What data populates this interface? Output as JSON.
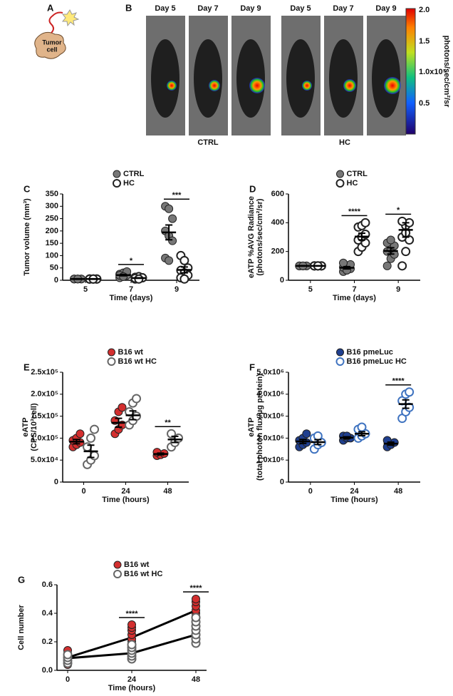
{
  "panel_a": {
    "label": "A",
    "cell": [
      "Tumor",
      "cell"
    ]
  },
  "panel_b": {
    "label": "B",
    "days": [
      "Day 5",
      "Day 7",
      "Day 9",
      "Day 5",
      "Day 7",
      "Day 9"
    ],
    "groups": [
      "CTRL",
      "HC"
    ],
    "colorbar_ticks": [
      "2.0",
      "1.5",
      "1.0x10⁵",
      "0.5"
    ],
    "colorbar_label": "photons/sec/cm²/sr"
  },
  "chart_data": [
    {
      "type": "dotplot",
      "panel": "C",
      "ylabel": [
        "Tumor volume (mm³)"
      ],
      "xlabel": "Time (days)",
      "categories": [
        "5",
        "7",
        "9"
      ],
      "ylim": [
        0,
        350
      ],
      "yticks": [
        0,
        50,
        100,
        150,
        200,
        250,
        300,
        350
      ],
      "series": [
        {
          "name": "CTRL",
          "color": "#777777",
          "filled": true,
          "values": [
            [
              5,
              5,
              5,
              5,
              5,
              5,
              5,
              5
            ],
            [
              10,
              15,
              20,
              25,
              30,
              35,
              20,
              15
            ],
            [
              300,
              290,
              250,
              200,
              180,
              160,
              90,
              80
            ]
          ],
          "mean": [
            5,
            21,
            194
          ],
          "sem": [
            1,
            3,
            30
          ]
        },
        {
          "name": "HC",
          "color": "#222222",
          "filled": false,
          "values": [
            [
              5,
              5,
              5,
              5,
              5,
              5,
              5,
              5
            ],
            [
              5,
              8,
              10,
              12,
              15,
              10,
              8,
              5
            ],
            [
              100,
              80,
              50,
              40,
              30,
              20,
              10,
              5
            ]
          ],
          "mean": [
            5,
            9,
            42
          ],
          "sem": [
            1,
            1,
            12
          ]
        }
      ],
      "annotations": [
        {
          "x": "7",
          "text": "*"
        },
        {
          "x": "9",
          "text": "***"
        }
      ]
    },
    {
      "type": "dotplot",
      "panel": "D",
      "ylabel": [
        "eATP %AVG Radiance",
        "(photons/sec/cm²/sr)"
      ],
      "xlabel": "Time  (days)",
      "categories": [
        "5",
        "7",
        "9"
      ],
      "ylim": [
        0,
        600
      ],
      "yticks": [
        0,
        200,
        400,
        600
      ],
      "series": [
        {
          "name": "CTRL",
          "color": "#777777",
          "filled": true,
          "values": [
            [
              100,
              100,
              100,
              100,
              100,
              100,
              100,
              100
            ],
            [
              60,
              70,
              80,
              90,
              100,
              110,
              120,
              70
            ],
            [
              100,
              150,
              180,
              200,
              220,
              240,
              260,
              280
            ]
          ],
          "mean": [
            100,
            87,
            204
          ],
          "sem": [
            1,
            8,
            22
          ]
        },
        {
          "name": "HC",
          "color": "#222222",
          "filled": false,
          "values": [
            [
              100,
              100,
              100,
              100,
              100,
              100,
              100,
              100
            ],
            [
              200,
              230,
              260,
              280,
              300,
              320,
              370,
              380,
              400
            ],
            [
              100,
              200,
              280,
              300,
              380,
              400,
              410,
              330
            ]
          ],
          "mean": [
            100,
            304,
            350
          ],
          "sem": [
            1,
            23,
            50
          ]
        }
      ],
      "annotations": [
        {
          "x": "7",
          "text": "****"
        },
        {
          "x": "9",
          "text": "*"
        }
      ]
    },
    {
      "type": "dotplot",
      "panel": "E",
      "ylabel": [
        "eATP",
        "(CPS/10³cell)"
      ],
      "xlabel": "Time (hours)",
      "categories": [
        "0",
        "24",
        "48"
      ],
      "ylim": [
        0,
        250000
      ],
      "yticks": [
        0,
        {
          "value": 50000,
          "label": "5.0x10⁴"
        },
        {
          "value": 100000,
          "label": "1.0x10⁵"
        },
        {
          "value": 150000,
          "label": "1.5x10⁵"
        },
        {
          "value": 200000,
          "label": "2.0x10⁵"
        },
        {
          "value": 250000,
          "label": "2.5x10⁵"
        }
      ],
      "series": [
        {
          "name": "B16 wt",
          "color": "#d32f2f",
          "filled": true,
          "values": [
            [
              80000,
              85000,
              90000,
              95000,
              100000,
              110000
            ],
            [
              110000,
              120000,
              130000,
              140000,
              160000,
              170000
            ],
            [
              60000,
              62000,
              65000,
              68000
            ]
          ],
          "mean": [
            92000,
            135000,
            64000
          ],
          "sem": [
            5000,
            10000,
            2000
          ]
        },
        {
          "name": "B16 wt HC",
          "color": "#666666",
          "filled": false,
          "values": [
            [
              40000,
              50000,
              60000,
              80000,
              100000,
              120000
            ],
            [
              130000,
              140000,
              150000,
              160000,
              180000,
              190000
            ],
            [
              80000,
              90000,
              100000,
              110000
            ]
          ],
          "mean": [
            70000,
            152000,
            97000
          ],
          "sem": [
            14000,
            10000,
            7000
          ]
        }
      ],
      "annotations": [
        {
          "x": "48",
          "text": "**"
        }
      ]
    },
    {
      "type": "dotplot",
      "panel": "F",
      "ylabel": [
        "eATP",
        "(total photon flux/µg protein)"
      ],
      "xlabel": "Time (hours)",
      "categories": [
        "0",
        "24",
        "48"
      ],
      "ylim": [
        0,
        5000000
      ],
      "yticks": [
        0,
        {
          "value": 1000000,
          "label": "1.0x10⁶"
        },
        {
          "value": 2000000,
          "label": "2.0x10⁶"
        },
        {
          "value": 3000000,
          "label": "3.0x10⁶"
        },
        {
          "value": 4000000,
          "label": "4.0x10⁶"
        },
        {
          "value": 5000000,
          "label": "5.0x10⁶"
        }
      ],
      "series": [
        {
          "name": "B16 pmeLuc",
          "color": "#1f3f8f",
          "filled": true,
          "values": [
            [
              1600000,
              1700000,
              1800000,
              1900000,
              2000000,
              2200000
            ],
            [
              1900000,
              2000000,
              2000000,
              2100000,
              2100000
            ],
            [
              1600000,
              1700000,
              1800000,
              1900000
            ]
          ],
          "mean": [
            1850000,
            2020000,
            1750000
          ],
          "sem": [
            90000,
            40000,
            70000
          ]
        },
        {
          "name": "B16 pmeLuc HC",
          "color": "#3f73c0",
          "filled": false,
          "values": [
            [
              1500000,
              1700000,
              1800000,
              2000000,
              2100000
            ],
            [
              2000000,
              2100000,
              2200000,
              2400000,
              2500000
            ],
            [
              2900000,
              3200000,
              3400000,
              3700000,
              4000000,
              4100000
            ]
          ],
          "mean": [
            1820000,
            2200000,
            3550000
          ],
          "sem": [
            110000,
            90000,
            190000
          ]
        }
      ],
      "annotations": [
        {
          "x": "48",
          "text": "****"
        }
      ]
    },
    {
      "type": "dotline",
      "panel": "G",
      "ylabel": [
        "Cell number"
      ],
      "xlabel": "Time (hours)",
      "x": [
        0,
        24,
        48
      ],
      "xlim": [
        0,
        48
      ],
      "xticks": [
        0,
        24,
        48
      ],
      "ylim": [
        0,
        0.6
      ],
      "yticks": [
        {
          "value": 0,
          "label": "0.0"
        },
        {
          "value": 0.2,
          "label": "0.2"
        },
        {
          "value": 0.4,
          "label": "0.4"
        },
        {
          "value": 0.6,
          "label": "0.6"
        }
      ],
      "series": [
        {
          "name": "B16 wt",
          "color": "#d32f2f",
          "filled": true,
          "values": [
            [
              0.04,
              0.06,
              0.08,
              0.1,
              0.12,
              0.14
            ],
            [
              0.15,
              0.18,
              0.2,
              0.22,
              0.25,
              0.28,
              0.3,
              0.32
            ],
            [
              0.35,
              0.38,
              0.4,
              0.42,
              0.45,
              0.48,
              0.5
            ]
          ],
          "mean": [
            0.09,
            0.23,
            0.42
          ]
        },
        {
          "name": "B16 wt HC",
          "color": "#666666",
          "filled": false,
          "values": [
            [
              0.05,
              0.07,
              0.09,
              0.11
            ],
            [
              0.08,
              0.1,
              0.12,
              0.14,
              0.16,
              0.18
            ],
            [
              0.19,
              0.22,
              0.25,
              0.28,
              0.31,
              0.34,
              0.37
            ]
          ],
          "mean": [
            0.085,
            0.12,
            0.25
          ]
        }
      ],
      "annotations": [
        {
          "x": 24,
          "text": "****"
        },
        {
          "x": 48,
          "text": "****"
        }
      ]
    }
  ]
}
